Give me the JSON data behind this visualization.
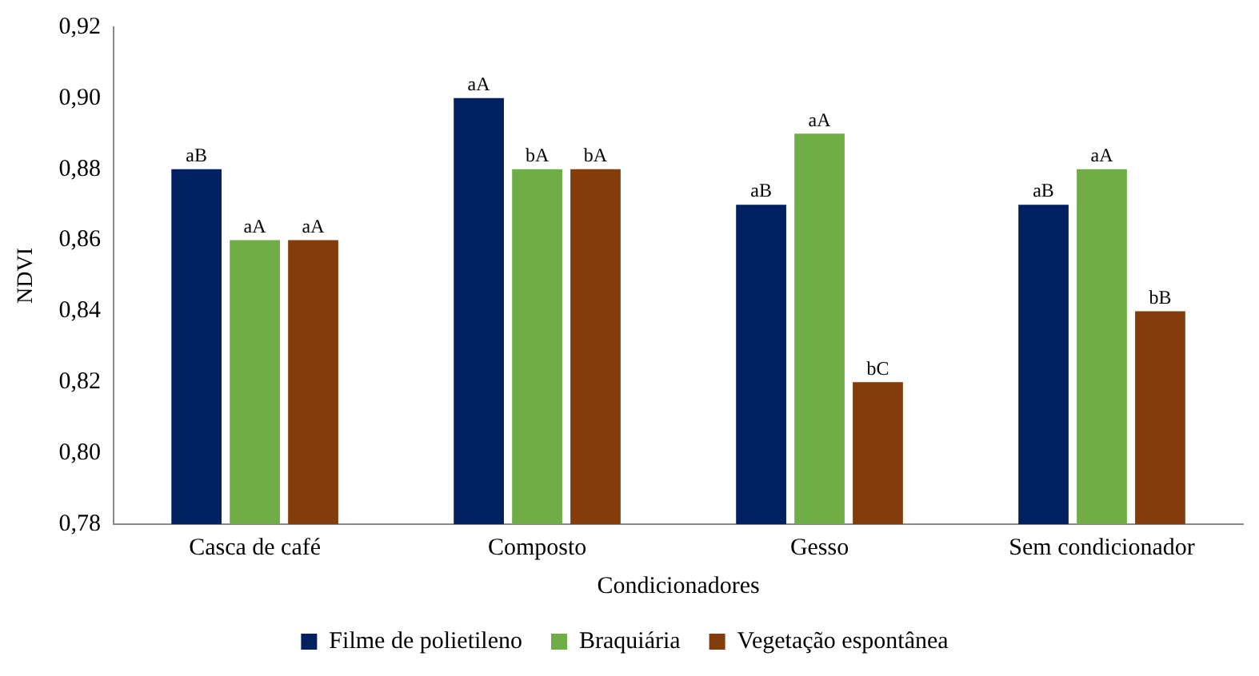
{
  "chart_data": {
    "type": "bar",
    "xlabel": "Condicionadores",
    "ylabel": "NDVI",
    "categories": [
      "Casca de café",
      "Composto",
      "Gesso",
      "Sem condicionador"
    ],
    "series": [
      {
        "name": "Filme de polietileno",
        "color": "#002060",
        "values": [
          0.88,
          0.9,
          0.87,
          0.87
        ],
        "value_labels": [
          "aB",
          "aA",
          "aB",
          "aB"
        ]
      },
      {
        "name": "Braquiária",
        "color": "#70ad47",
        "values": [
          0.86,
          0.88,
          0.89,
          0.88
        ],
        "value_labels": [
          "aA",
          "bA",
          "aA",
          "aA"
        ]
      },
      {
        "name": "Vegetação espontânea",
        "color": "#843c0c",
        "values": [
          0.86,
          0.88,
          0.82,
          0.84
        ],
        "value_labels": [
          "aA",
          "bA",
          "bC",
          "bB"
        ]
      }
    ],
    "ylim": [
      0.78,
      0.92
    ],
    "yticks": [
      {
        "value": 0.78,
        "label": "0,78"
      },
      {
        "value": 0.8,
        "label": "0,80"
      },
      {
        "value": 0.82,
        "label": "0,82"
      },
      {
        "value": 0.84,
        "label": "0,84"
      },
      {
        "value": 0.86,
        "label": "0,86"
      },
      {
        "value": 0.88,
        "label": "0,88"
      },
      {
        "value": 0.9,
        "label": "0,90"
      },
      {
        "value": 0.92,
        "label": "0,92"
      }
    ],
    "grid": false,
    "legend": "bottom"
  }
}
